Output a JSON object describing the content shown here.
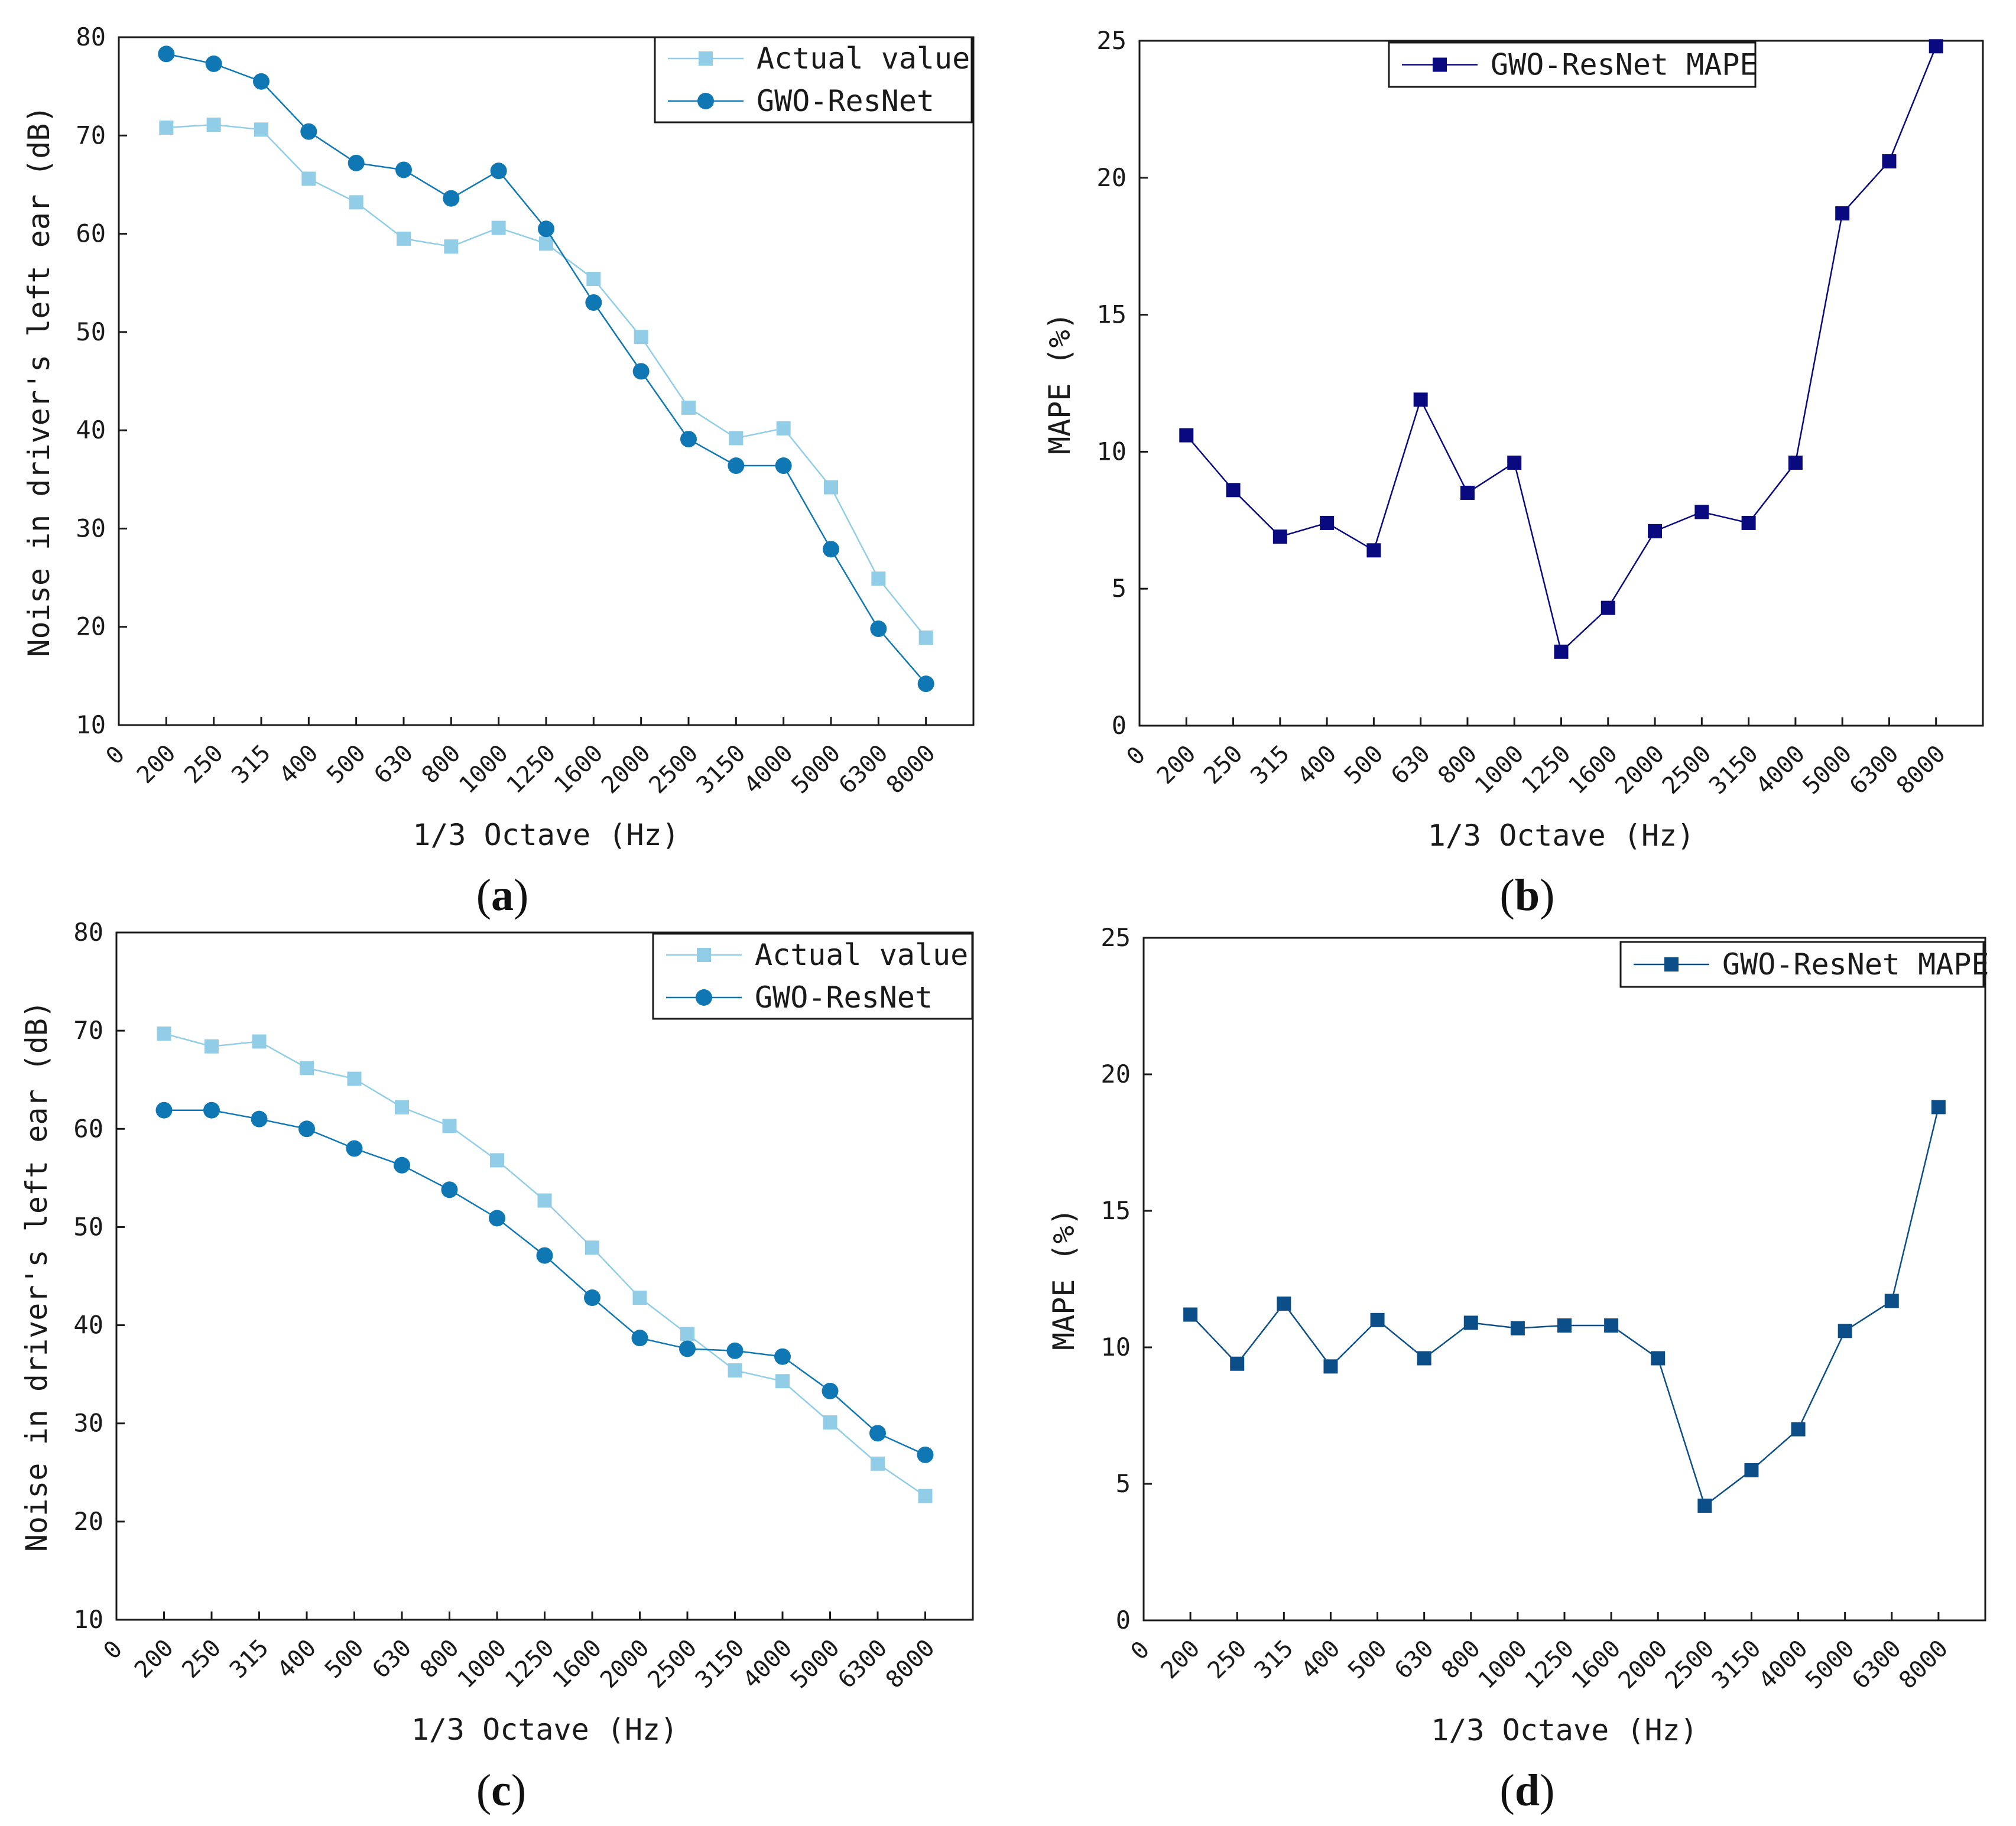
{
  "chart_data": [
    {
      "panel": "(a)",
      "panel_letter": "a",
      "type": "line",
      "xlabel": "1/3 Octave (Hz)",
      "ylabel": "Noise in driver's left ear (dB)",
      "x_zero_label": "0",
      "categories": [
        "200",
        "250",
        "315",
        "400",
        "500",
        "630",
        "800",
        "1000",
        "1250",
        "1600",
        "2000",
        "2500",
        "3150",
        "4000",
        "5000",
        "6300",
        "8000"
      ],
      "ylim": [
        10,
        80
      ],
      "yticks": [
        "10",
        "20",
        "30",
        "40",
        "50",
        "60",
        "70",
        "80"
      ],
      "legend_position": "top-right",
      "series": [
        {
          "name": "Actual value",
          "marker": "square",
          "color": "#92cde8",
          "values": [
            70.8,
            71.1,
            70.6,
            65.6,
            63.2,
            59.5,
            58.7,
            60.6,
            59.0,
            55.4,
            49.5,
            42.3,
            39.2,
            40.2,
            34.2,
            24.9,
            18.9
          ]
        },
        {
          "name": "GWO-ResNet",
          "marker": "circle",
          "color": "#0f78b4",
          "values": [
            78.3,
            77.3,
            75.5,
            70.4,
            67.2,
            66.5,
            63.6,
            66.4,
            60.5,
            53.0,
            46.0,
            39.1,
            36.4,
            36.4,
            27.9,
            19.8,
            14.2
          ]
        }
      ]
    },
    {
      "panel": "(b)",
      "panel_letter": "b",
      "type": "line",
      "xlabel": "1/3 Octave (Hz)",
      "ylabel": "MAPE (%)",
      "x_zero_label": "0",
      "categories": [
        "200",
        "250",
        "315",
        "400",
        "500",
        "630",
        "800",
        "1000",
        "1250",
        "1600",
        "2000",
        "2500",
        "3150",
        "4000",
        "5000",
        "6300",
        "8000"
      ],
      "ylim": [
        0,
        25
      ],
      "yticks": [
        "0",
        "5",
        "10",
        "15",
        "20",
        "25"
      ],
      "legend_position": "top-right",
      "series": [
        {
          "name": "GWO-ResNet MAPE",
          "marker": "square",
          "color": "#0a0a80",
          "values": [
            10.6,
            8.6,
            6.9,
            7.4,
            6.4,
            11.9,
            8.5,
            9.6,
            2.7,
            4.3,
            7.1,
            7.8,
            7.4,
            9.6,
            18.7,
            20.6,
            24.8
          ]
        }
      ]
    },
    {
      "panel": "(c)",
      "panel_letter": "c",
      "type": "line",
      "xlabel": "1/3 Octave (Hz)",
      "ylabel": "Noise in driver's left ear (dB)",
      "x_zero_label": "0",
      "categories": [
        "200",
        "250",
        "315",
        "400",
        "500",
        "630",
        "800",
        "1000",
        "1250",
        "1600",
        "2000",
        "2500",
        "3150",
        "4000",
        "5000",
        "6300",
        "8000"
      ],
      "ylim": [
        10,
        80
      ],
      "yticks": [
        "10",
        "20",
        "30",
        "40",
        "50",
        "60",
        "70",
        "80"
      ],
      "legend_position": "top-right",
      "series": [
        {
          "name": "Actual value",
          "marker": "square",
          "color": "#92cde8",
          "values": [
            69.7,
            68.4,
            68.9,
            66.2,
            65.1,
            62.2,
            60.3,
            56.8,
            52.7,
            47.9,
            42.8,
            39.1,
            35.4,
            34.3,
            30.1,
            25.9,
            22.6
          ]
        },
        {
          "name": "GWO-ResNet",
          "marker": "circle",
          "color": "#0f78b4",
          "values": [
            61.9,
            61.9,
            61.0,
            60.0,
            58.0,
            56.3,
            53.8,
            50.9,
            47.1,
            42.8,
            38.7,
            37.6,
            37.4,
            36.8,
            33.3,
            29.0,
            26.8
          ]
        }
      ]
    },
    {
      "panel": "(d)",
      "panel_letter": "d",
      "type": "line",
      "xlabel": "1/3 Octave (Hz)",
      "ylabel": "MAPE (%)",
      "x_zero_label": "0",
      "categories": [
        "200",
        "250",
        "315",
        "400",
        "500",
        "630",
        "800",
        "1000",
        "1250",
        "1600",
        "2000",
        "2500",
        "3150",
        "4000",
        "5000",
        "6300",
        "8000"
      ],
      "ylim": [
        0,
        25
      ],
      "yticks": [
        "0",
        "5",
        "10",
        "15",
        "20",
        "25"
      ],
      "legend_position": "top-right",
      "series": [
        {
          "name": "GWO-ResNet MAPE",
          "marker": "square",
          "color": "#0c4f88",
          "values": [
            11.2,
            9.4,
            11.6,
            9.3,
            11.0,
            9.6,
            10.9,
            10.7,
            10.8,
            10.8,
            9.6,
            4.2,
            5.5,
            7.0,
            10.6,
            11.7,
            18.8
          ]
        }
      ]
    }
  ]
}
